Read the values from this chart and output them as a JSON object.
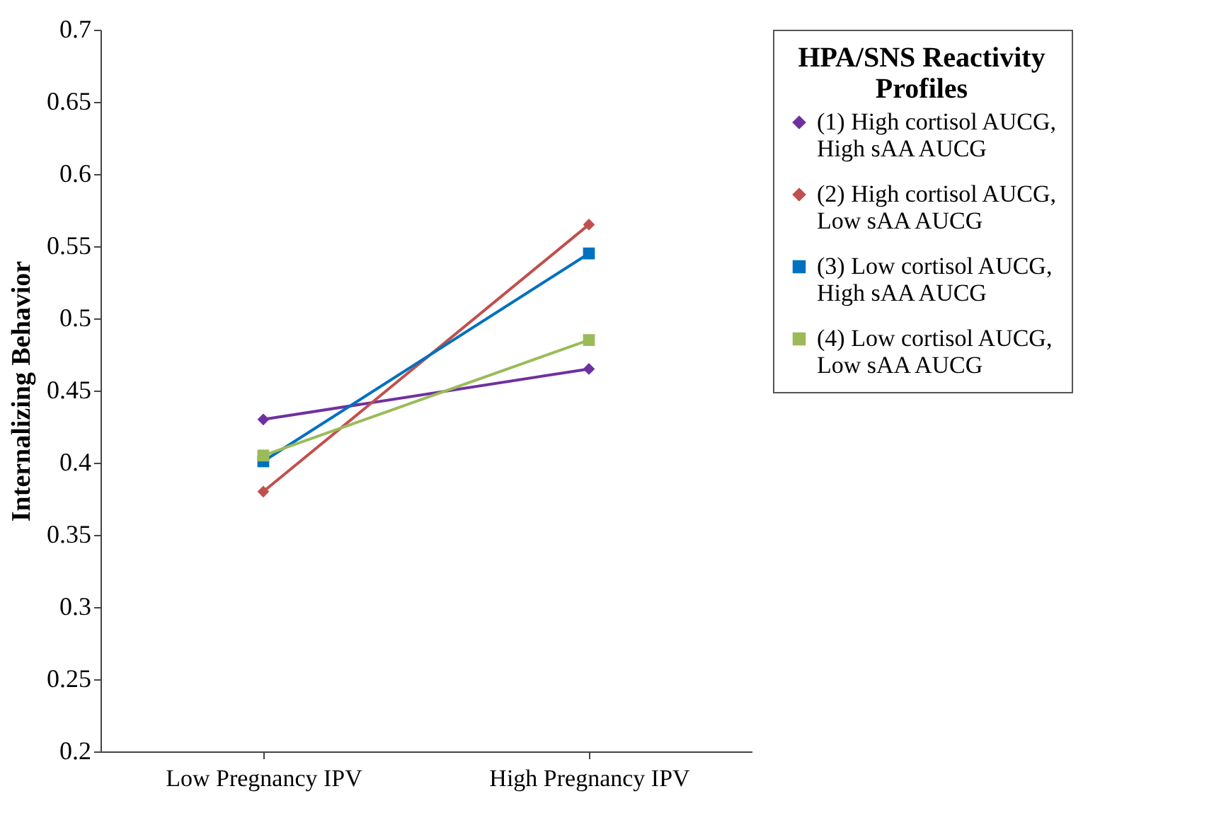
{
  "chart_data": {
    "type": "line",
    "ylabel": "Internalizing  Behavior",
    "legend_title": "HPA/SNS Reactivity Profiles",
    "categories": [
      "Low Pregnancy IPV",
      "High Pregnancy IPV"
    ],
    "ylim": [
      0.2,
      0.7
    ],
    "yticks": [
      0.2,
      0.25,
      0.3,
      0.35,
      0.4,
      0.45,
      0.5,
      0.55,
      0.6,
      0.65,
      0.7
    ],
    "grid": false,
    "legend": "right",
    "series": [
      {
        "name": "(1) High cortisol AUCG, High sAA AUCG",
        "color": "#7030a0",
        "marker": "diamond",
        "values": [
          0.43,
          0.465
        ]
      },
      {
        "name": "(2) High cortisol AUCG, Low sAA AUCG",
        "color": "#c0504d",
        "marker": "diamond",
        "values": [
          0.38,
          0.565
        ]
      },
      {
        "name": "(3) Low cortisol AUCG, High sAA AUCG",
        "color": "#0070c0",
        "marker": "square",
        "values": [
          0.401,
          0.545
        ]
      },
      {
        "name": "(4) Low cortisol AUCG, Low sAA AUCG",
        "color": "#9bbb59",
        "marker": "square",
        "values": [
          0.405,
          0.485
        ]
      }
    ]
  }
}
